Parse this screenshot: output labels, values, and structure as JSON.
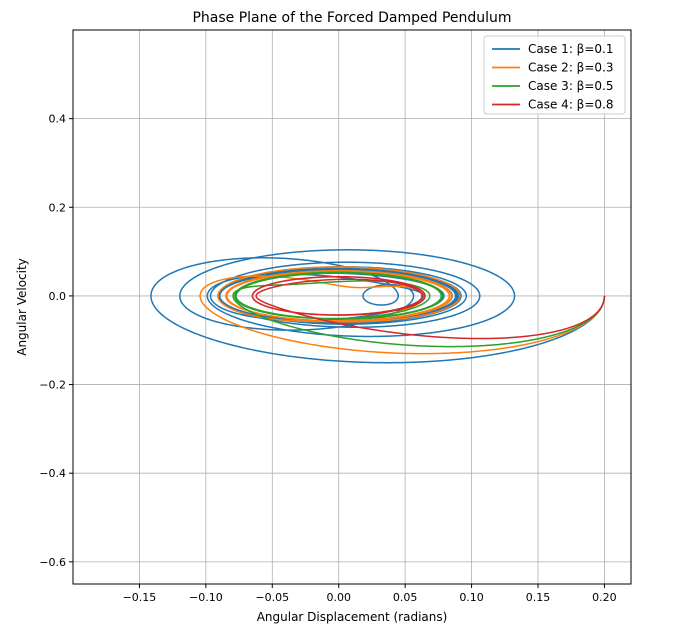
{
  "chart_data": {
    "type": "line",
    "title": "Phase Plane of the Forced Damped Pendulum",
    "xlabel": "Angular Displacement (radians)",
    "ylabel": "Angular Velocity",
    "xlim": [
      -0.2,
      0.22
    ],
    "ylim": [
      -0.65,
      0.6
    ],
    "xticks": [
      -0.15,
      -0.1,
      -0.05,
      0.0,
      0.05,
      0.1,
      0.15,
      0.2
    ],
    "xtick_labels": [
      "−0.15",
      "−0.10",
      "−0.05",
      "0.00",
      "0.05",
      "0.10",
      "0.15",
      "0.20"
    ],
    "yticks": [
      -0.6,
      -0.4,
      -0.2,
      0.0,
      0.2,
      0.4
    ],
    "ytick_labels": [
      "−0.6",
      "−0.4",
      "−0.2",
      "0.0",
      "0.2",
      "0.4"
    ],
    "grid": true,
    "legend_position": "top-right",
    "start_point": [
      0.2,
      0.0
    ],
    "series": [
      {
        "name": "Case 1: β=0.1",
        "color": "#1f77b4",
        "beta": 0.1
      },
      {
        "name": "Case 2: β=0.3",
        "color": "#ff7f0e",
        "beta": 0.3
      },
      {
        "name": "Case 3: β=0.5",
        "color": "#2ca02c",
        "beta": 0.5
      },
      {
        "name": "Case 4: β=0.8",
        "color": "#d62728",
        "beta": 0.8
      }
    ]
  }
}
